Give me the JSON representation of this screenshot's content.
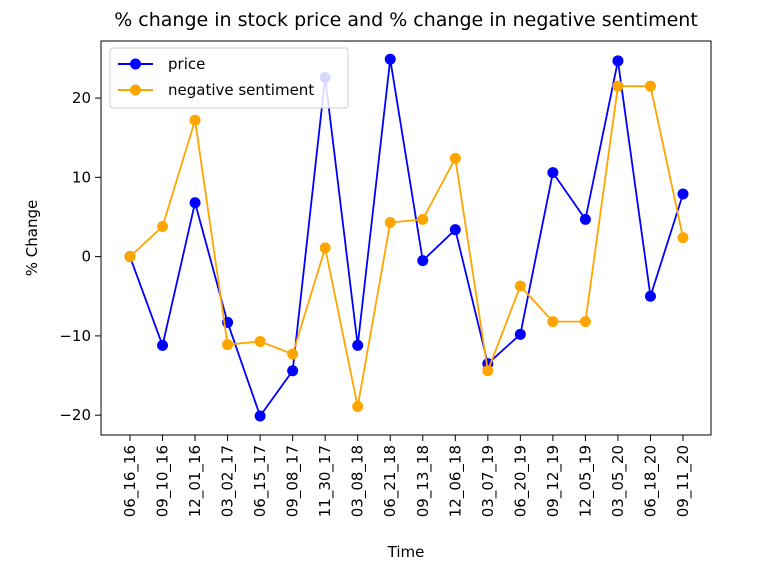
{
  "chart_data": {
    "type": "line",
    "title": "% change in stock price and % change in negative sentiment",
    "xlabel": "Time",
    "ylabel": "% Change",
    "categories": [
      "06_16_16",
      "09_10_16",
      "12_01_16",
      "03_02_17",
      "06_15_17",
      "09_08_17",
      "11_30_17",
      "03_08_18",
      "06_21_18",
      "09_13_18",
      "12_06_18",
      "03_07_19",
      "06_20_19",
      "09_12_19",
      "12_05_19",
      "03_05_20",
      "06_18_20",
      "09_11_20"
    ],
    "yticks": [
      -20,
      -10,
      0,
      10,
      20
    ],
    "ylim": [
      -22.5,
      27.2
    ],
    "grid": false,
    "legend_position": "top-left",
    "series": [
      {
        "name": "price",
        "color": "#0000ff",
        "marker": "circle",
        "values": [
          0,
          -11.2,
          6.8,
          -8.3,
          -20.1,
          -14.4,
          22.6,
          -11.2,
          24.9,
          -0.5,
          3.4,
          -13.5,
          -9.8,
          10.6,
          4.7,
          24.7,
          -5.0,
          7.9
        ]
      },
      {
        "name": "negative sentiment",
        "color": "#ffa500",
        "marker": "circle",
        "values": [
          0,
          3.8,
          17.2,
          -11.1,
          -10.7,
          -12.3,
          1.1,
          -18.9,
          4.3,
          4.7,
          12.4,
          -14.4,
          -3.7,
          -8.2,
          -8.2,
          21.5,
          21.5,
          2.4
        ]
      }
    ]
  }
}
